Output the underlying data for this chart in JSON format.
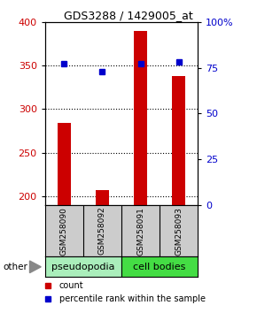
{
  "title": "GDS3288 / 1429005_at",
  "samples": [
    "GSM258090",
    "GSM258092",
    "GSM258091",
    "GSM258093"
  ],
  "groups": [
    "pseudopodia",
    "pseudopodia",
    "cell bodies",
    "cell bodies"
  ],
  "counts": [
    284,
    207,
    390,
    338
  ],
  "percentile_ranks": [
    77,
    73,
    77,
    78
  ],
  "ylim_left": [
    190,
    400
  ],
  "ylim_right": [
    0,
    100
  ],
  "yticks_left": [
    200,
    250,
    300,
    350,
    400
  ],
  "yticks_right": [
    0,
    25,
    50,
    75,
    100
  ],
  "bar_color": "#cc0000",
  "dot_color": "#0000cc",
  "group_colors": {
    "pseudopodia": "#aaeebb",
    "cell bodies": "#44dd44"
  },
  "sample_bg_color": "#cccccc",
  "plot_bg_color": "#ffffff",
  "left_tick_color": "#cc0000",
  "right_tick_color": "#0000cc",
  "legend_count_color": "#cc0000",
  "legend_pct_color": "#0000cc",
  "bar_width": 0.35,
  "title_fontsize": 9,
  "tick_fontsize": 8,
  "sample_fontsize": 6.5,
  "group_fontsize": 8,
  "legend_fontsize": 7
}
